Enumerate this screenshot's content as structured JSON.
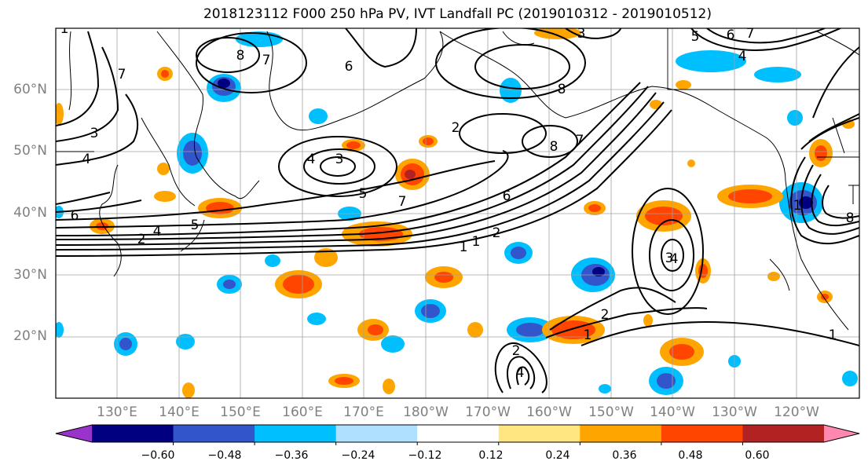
{
  "title": "2018123112 F000 250 hPa PV, IVT Landfall PC (2019010312 - 2019010512)",
  "lat_labels": [
    "60°N",
    "50°N",
    "40°N",
    "30°N",
    "20°N"
  ],
  "lon_labels": [
    "130°E",
    "140°E",
    "150°E",
    "160°E",
    "170°E",
    "180°W",
    "170°W",
    "160°W",
    "150°W",
    "140°W",
    "130°W",
    "120°W"
  ],
  "colorbar": {
    "tick_labels": [
      "−0.60",
      "−0.48",
      "−0.36",
      "−0.24",
      "−0.12",
      "0.12",
      "0.24",
      "0.36",
      "0.48",
      "0.60"
    ],
    "colors": [
      "#9933cc",
      "#000080",
      "#3355cc",
      "#00bfff",
      "#b0e0ff",
      "#ffffff",
      "#ffe680",
      "#ffa500",
      "#ff4500",
      "#b22222",
      "#ff88b0"
    ]
  },
  "contour_labels": [
    "8",
    "7",
    "6",
    "5",
    "4",
    "3",
    "2",
    "1",
    "8",
    "7",
    "4",
    "3",
    "5",
    "7",
    "6",
    "2",
    "1",
    "2",
    "1",
    "4",
    "3",
    "4",
    "2",
    "1",
    "1",
    "8",
    "7",
    "6",
    "5",
    "4",
    "3",
    "2",
    "1",
    "6",
    "7",
    "4",
    "8"
  ]
}
